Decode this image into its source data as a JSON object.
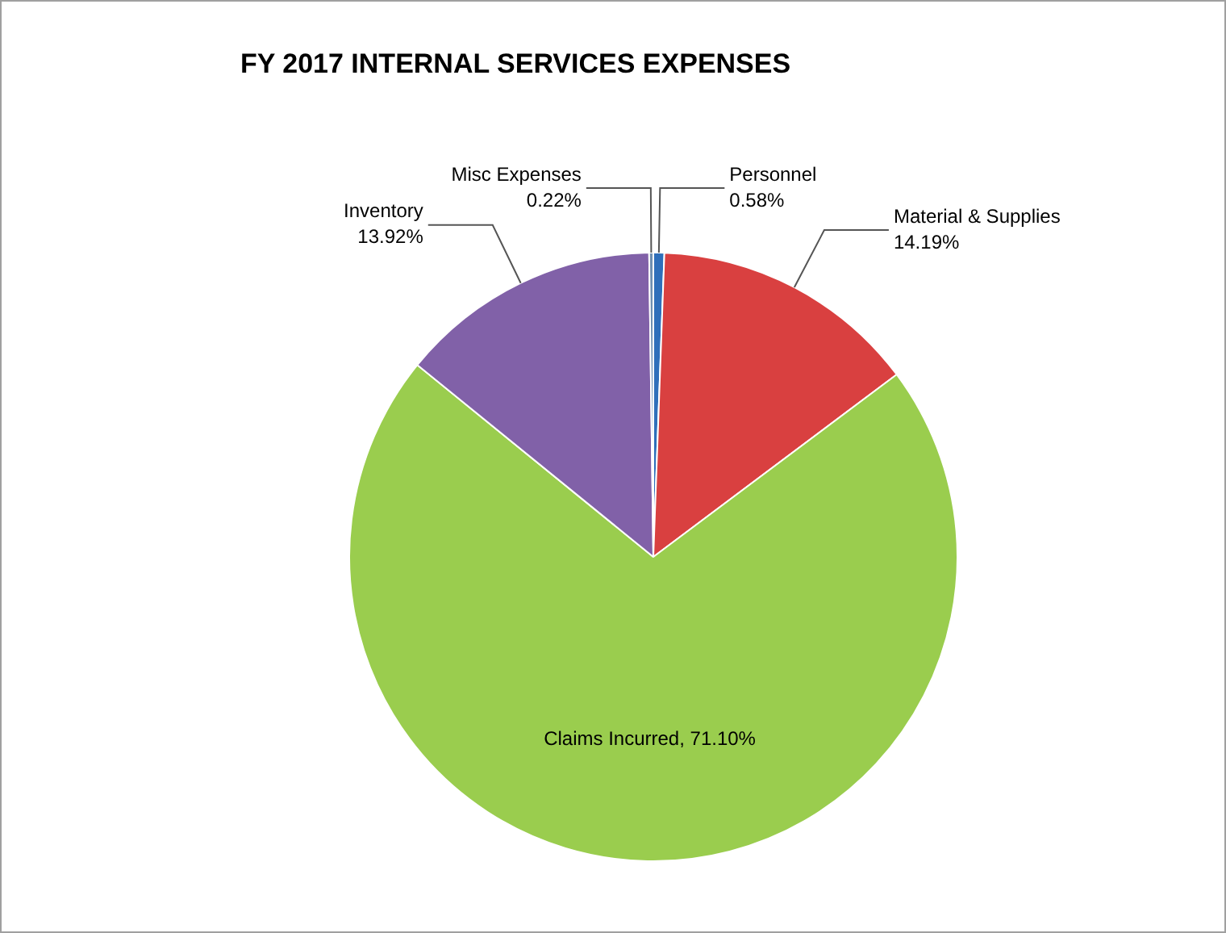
{
  "chart_data": {
    "type": "pie",
    "title": "FY 2017 INTERNAL SERVICES EXPENSES",
    "categories": [
      "Personnel",
      "Material & Supplies",
      "Claims Incurred",
      "Inventory",
      "Misc Expenses"
    ],
    "values": [
      0.58,
      14.19,
      71.1,
      13.92,
      0.22
    ],
    "colors": [
      "#2f6fba",
      "#d94040",
      "#9acd4e",
      "#8161a8",
      "#6f8fb0"
    ],
    "value_labels": [
      "0.58%",
      "14.19%",
      "71.10%",
      "13.92%",
      "0.22%"
    ],
    "legend": false
  }
}
